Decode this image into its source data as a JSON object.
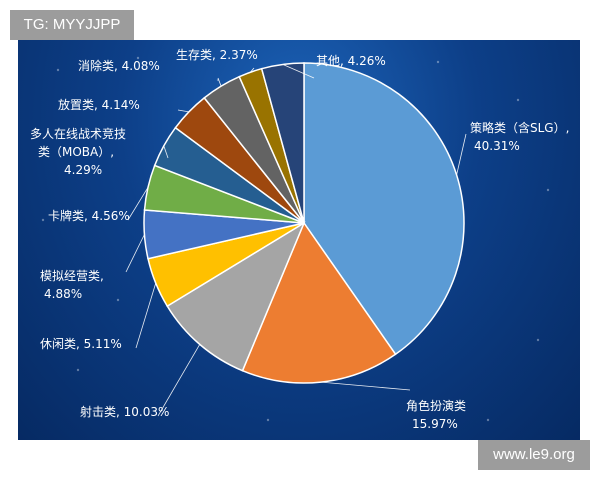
{
  "watermarks": {
    "top_left": "TG: MYYJJPP",
    "bottom_right": "www.le9.org"
  },
  "chart_data": {
    "type": "pie",
    "title": "",
    "unit": "%",
    "slices": [
      {
        "label": "策略类（含SLG）,",
        "value": 40.31,
        "value_text": "40.31%",
        "color": "#5b9bd5"
      },
      {
        "label": "角色扮演类",
        "value": 15.97,
        "value_text": "15.97%",
        "color": "#ed7d31"
      },
      {
        "label": "射击类,",
        "value": 10.03,
        "value_text": "10.03%",
        "color": "#a5a5a5"
      },
      {
        "label": "休闲类,",
        "value": 5.11,
        "value_text": "5.11%",
        "color": "#ffc000"
      },
      {
        "label": "模拟经营类,",
        "value": 4.88,
        "value_text": "4.88%",
        "color": "#4472c4"
      },
      {
        "label": "卡牌类,",
        "value": 4.56,
        "value_text": "4.56%",
        "color": "#70ad47"
      },
      {
        "label": "多人在线战术竞技类（MOBA）,",
        "value": 4.29,
        "value_text": "4.29%",
        "color": "#255e91"
      },
      {
        "label": "放置类,",
        "value": 4.14,
        "value_text": "4.14%",
        "color": "#9e480e"
      },
      {
        "label": "消除类,",
        "value": 4.08,
        "value_text": "4.08%",
        "color": "#636363"
      },
      {
        "label": "生存类,",
        "value": 2.37,
        "value_text": "2.37%",
        "color": "#997300"
      },
      {
        "label": "其他,",
        "value": 4.26,
        "value_text": "4.26%",
        "color": "#264478"
      }
    ]
  }
}
